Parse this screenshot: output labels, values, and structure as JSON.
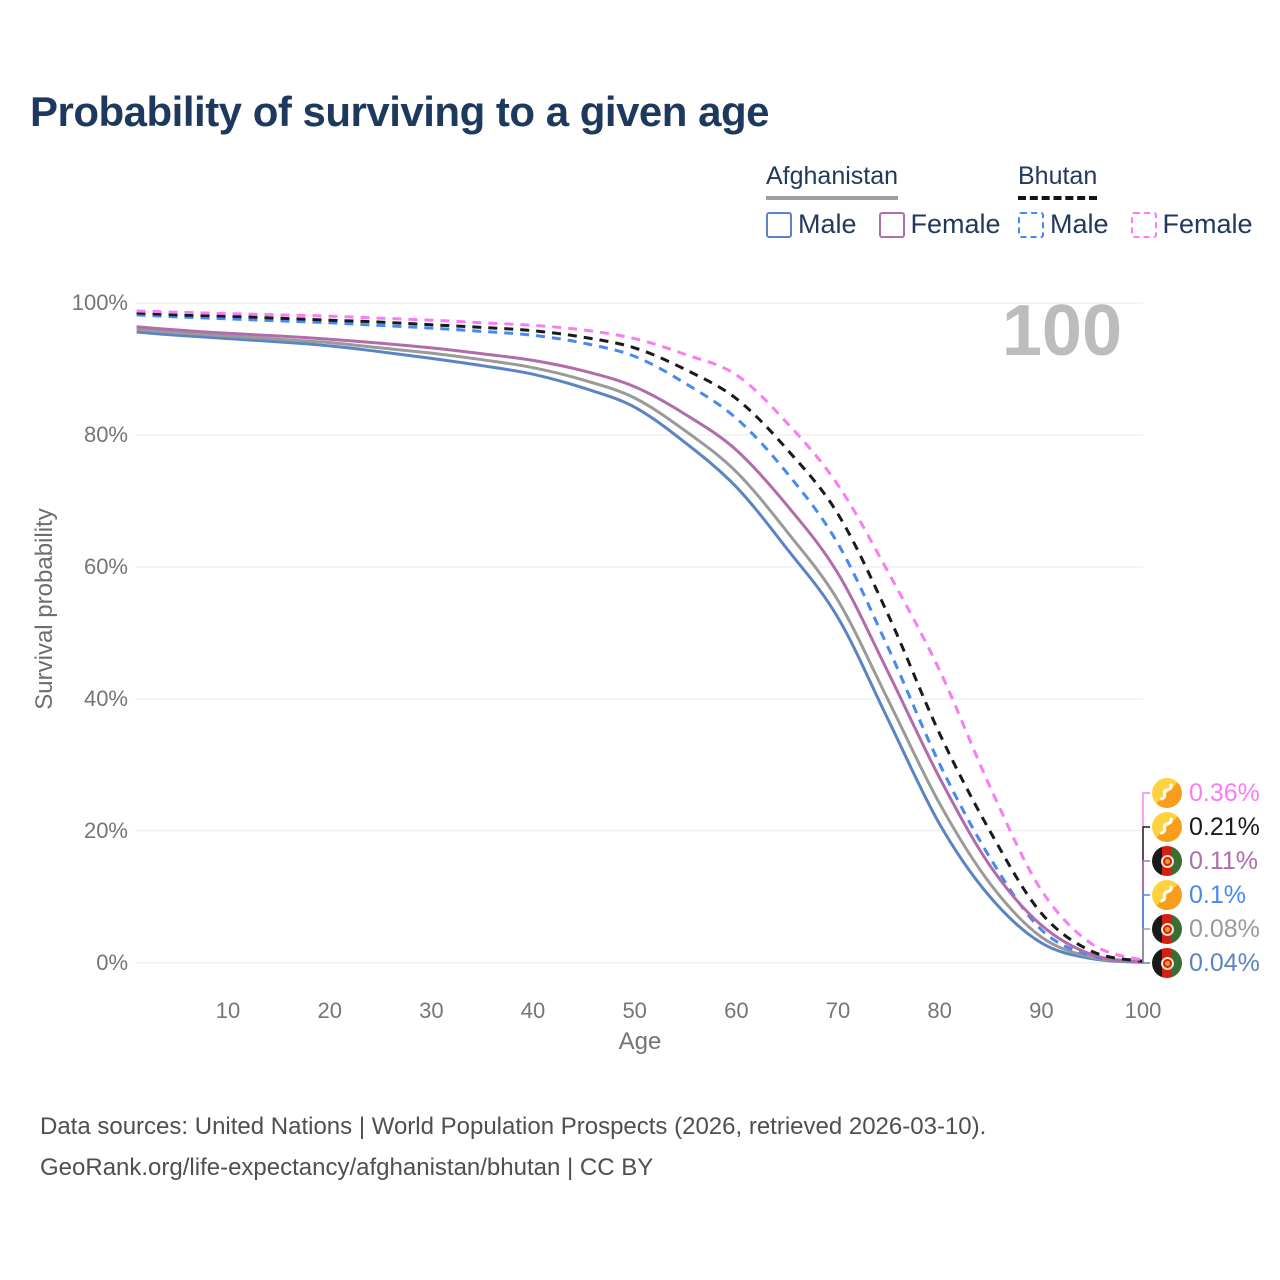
{
  "title": "Probability of surviving to a given age",
  "watermark_age": "100",
  "legend": {
    "groups": [
      {
        "country": "Afghanistan",
        "line_style": "solid",
        "underline_color": "#9e9e9e",
        "items": [
          {
            "label": "Male",
            "color": "#5b84c4",
            "dashed": false
          },
          {
            "label": "Female",
            "color": "#b06cab",
            "dashed": false
          }
        ]
      },
      {
        "country": "Bhutan",
        "line_style": "dashed",
        "underline_color": "#141414",
        "items": [
          {
            "label": "Male",
            "color": "#4489f4",
            "dashed": true
          },
          {
            "label": "Female",
            "color": "#fa7cf2",
            "dashed": true
          }
        ]
      }
    ]
  },
  "chart_data": {
    "type": "line",
    "title": "Probability of surviving to a given age",
    "xlabel": "Age",
    "ylabel": "Survival probability",
    "xlim": [
      1,
      100
    ],
    "ylim": [
      0,
      100
    ],
    "grid": true,
    "legend_position": "top-right",
    "x_ticks": [
      10,
      20,
      30,
      40,
      50,
      60,
      70,
      80,
      90,
      100
    ],
    "y_ticks": [
      {
        "label": "100%",
        "value": 100
      },
      {
        "label": "80%",
        "value": 80
      },
      {
        "label": "60%",
        "value": 60
      },
      {
        "label": "40%",
        "value": 40
      },
      {
        "label": "20%",
        "value": 20
      },
      {
        "label": "0%",
        "value": 0
      }
    ],
    "x": [
      1,
      5,
      10,
      15,
      20,
      25,
      30,
      35,
      40,
      45,
      50,
      55,
      60,
      65,
      70,
      75,
      80,
      85,
      90,
      95,
      100
    ],
    "series": [
      {
        "name": "Bhutan Female",
        "slug": "bhutan-female",
        "color": "#fa7cf2",
        "dashed": true,
        "flag": "bhutan",
        "end_label": "0.36%",
        "values": [
          98.8,
          98.6,
          98.4,
          98.2,
          98.0,
          97.7,
          97.4,
          97.0,
          96.6,
          95.9,
          94.6,
          92.2,
          89.1,
          81.8,
          72.4,
          59.0,
          44.3,
          26.5,
          11.0,
          2.8,
          0.36
        ]
      },
      {
        "name": "Bhutan Both sexes",
        "slug": "bhutan-both",
        "color": "#1a1a1a",
        "dashed": true,
        "flag": "bhutan",
        "end_label": "0.21%",
        "values": [
          98.5,
          98.2,
          98.0,
          97.7,
          97.4,
          97.1,
          96.7,
          96.3,
          95.8,
          94.8,
          93.2,
          89.9,
          85.5,
          77.8,
          68.0,
          52.5,
          34.7,
          19.8,
          7.5,
          1.7,
          0.21
        ]
      },
      {
        "name": "Afghanistan Female",
        "slug": "afghanistan-female",
        "color": "#b06cab",
        "dashed": false,
        "flag": "afghanistan",
        "end_label": "0.11%",
        "values": [
          96.4,
          95.9,
          95.4,
          95.0,
          94.5,
          93.9,
          93.2,
          92.3,
          91.3,
          89.7,
          87.3,
          83.1,
          77.7,
          69.3,
          59.0,
          43.8,
          28.0,
          14.6,
          5.7,
          1.2,
          0.11
        ]
      },
      {
        "name": "Bhutan Male",
        "slug": "bhutan-male",
        "color": "#4489f4",
        "dashed": true,
        "flag": "bhutan",
        "end_label": "0.1%",
        "values": [
          98.2,
          97.9,
          97.6,
          97.3,
          97.0,
          96.6,
          96.2,
          95.7,
          95.1,
          93.9,
          91.9,
          87.8,
          82.5,
          74.2,
          63.5,
          47.5,
          30.1,
          15.8,
          5.0,
          1.0,
          0.1
        ]
      },
      {
        "name": "Afghanistan Both sexes",
        "slug": "afghanistan-both",
        "color": "#9a9a9a",
        "dashed": false,
        "flag": "afghanistan",
        "end_label": "0.08%",
        "values": [
          96.0,
          95.5,
          95.0,
          94.5,
          94.0,
          93.2,
          92.4,
          91.4,
          90.2,
          88.3,
          85.6,
          80.6,
          74.4,
          65.3,
          54.9,
          39.6,
          24.1,
          11.9,
          3.9,
          0.8,
          0.08
        ]
      },
      {
        "name": "Afghanistan Male",
        "slug": "afghanistan-male",
        "color": "#5b84c4",
        "dashed": false,
        "flag": "afghanistan",
        "end_label": "0.04%",
        "values": [
          95.6,
          95.1,
          94.6,
          94.1,
          93.5,
          92.6,
          91.6,
          90.5,
          89.2,
          87.1,
          84.2,
          78.8,
          72.1,
          62.7,
          52.3,
          36.6,
          21.0,
          9.9,
          3.0,
          0.6,
          0.04
        ]
      }
    ]
  },
  "footer": {
    "line1": "Data sources: United Nations | World Population Prospects (2026, retrieved 2026-03-10).",
    "line2": "GeoRank.org/life-expectancy/afghanistan/bhutan | CC BY"
  }
}
